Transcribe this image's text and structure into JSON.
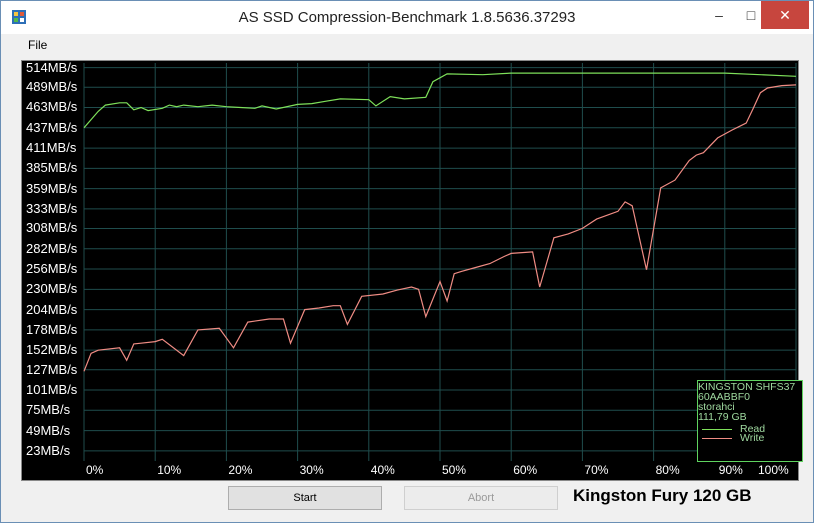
{
  "window": {
    "title": "AS SSD Compression-Benchmark 1.8.5636.37293",
    "min_glyph": "–",
    "max_glyph": "□",
    "close_glyph": "✕"
  },
  "menu": {
    "file_label": "File"
  },
  "buttons": {
    "start_label": "Start",
    "abort_label": "Abort"
  },
  "caption": "Kingston Fury 120 GB",
  "legend": {
    "lines": [
      "KINGSTON SHFS37",
      "60AABBF0",
      "storahci",
      "111,79 GB"
    ],
    "read_label": "Read",
    "write_label": "Write"
  },
  "colors": {
    "read": "#7ee05a",
    "write": "#f08c84",
    "grid": "#1f4d4d",
    "background": "#000000"
  },
  "chart_data": {
    "type": "line",
    "y_tick_labels": [
      "514MB/s",
      "489MB/s",
      "463MB/s",
      "437MB/s",
      "411MB/s",
      "385MB/s",
      "359MB/s",
      "333MB/s",
      "308MB/s",
      "282MB/s",
      "256MB/s",
      "230MB/s",
      "204MB/s",
      "178MB/s",
      "152MB/s",
      "127MB/s",
      "101MB/s",
      "75MB/s",
      "49MB/s",
      "23MB/s"
    ],
    "y_tick_values": [
      514,
      489,
      463,
      437,
      411,
      385,
      359,
      333,
      308,
      282,
      256,
      230,
      204,
      178,
      152,
      127,
      101,
      75,
      49,
      23
    ],
    "x_tick_labels": [
      "0%",
      "10%",
      "20%",
      "30%",
      "40%",
      "50%",
      "60%",
      "70%",
      "80%",
      "90%",
      "100%"
    ],
    "x_tick_values": [
      0,
      10,
      20,
      30,
      40,
      50,
      60,
      70,
      80,
      90,
      100
    ],
    "xlim": [
      0,
      100
    ],
    "ylim": [
      0,
      530
    ],
    "grid": true,
    "legend_position": "bottom-right",
    "series": [
      {
        "name": "Read",
        "points": [
          [
            0,
            437
          ],
          [
            2,
            458
          ],
          [
            3,
            466
          ],
          [
            5,
            469
          ],
          [
            6,
            469
          ],
          [
            7,
            460
          ],
          [
            8,
            463
          ],
          [
            9,
            459
          ],
          [
            11,
            462
          ],
          [
            12,
            466
          ],
          [
            13,
            464
          ],
          [
            14,
            466
          ],
          [
            16,
            464
          ],
          [
            18,
            466
          ],
          [
            20,
            464
          ],
          [
            22,
            463
          ],
          [
            24,
            462
          ],
          [
            25,
            465
          ],
          [
            27,
            461
          ],
          [
            30,
            467
          ],
          [
            32,
            468
          ],
          [
            34,
            471
          ],
          [
            36,
            474
          ],
          [
            40,
            473
          ],
          [
            41,
            465
          ],
          [
            43,
            477
          ],
          [
            45,
            474
          ],
          [
            48,
            476
          ],
          [
            49,
            496
          ],
          [
            51,
            506
          ],
          [
            56,
            505
          ],
          [
            60,
            507
          ],
          [
            70,
            507
          ],
          [
            80,
            507
          ],
          [
            90,
            507
          ],
          [
            100,
            503
          ]
        ]
      },
      {
        "name": "Write",
        "points": [
          [
            0,
            125
          ],
          [
            1,
            148
          ],
          [
            2,
            152
          ],
          [
            5,
            155
          ],
          [
            6,
            139
          ],
          [
            7,
            160
          ],
          [
            8,
            161
          ],
          [
            10,
            163
          ],
          [
            11,
            166
          ],
          [
            14,
            145
          ],
          [
            16,
            178
          ],
          [
            19,
            180
          ],
          [
            21,
            155
          ],
          [
            23,
            188
          ],
          [
            26,
            192
          ],
          [
            28,
            192
          ],
          [
            29,
            161
          ],
          [
            31,
            204
          ],
          [
            33,
            206
          ],
          [
            35,
            209
          ],
          [
            36,
            209
          ],
          [
            37,
            185
          ],
          [
            39,
            221
          ],
          [
            42,
            224
          ],
          [
            44,
            229
          ],
          [
            46,
            233
          ],
          [
            47,
            230
          ],
          [
            48,
            195
          ],
          [
            50,
            240
          ],
          [
            51,
            215
          ],
          [
            52,
            250
          ],
          [
            53,
            253
          ],
          [
            55,
            258
          ],
          [
            57,
            263
          ],
          [
            59,
            272
          ],
          [
            60,
            276
          ],
          [
            63,
            278
          ],
          [
            64,
            233
          ],
          [
            66,
            296
          ],
          [
            68,
            301
          ],
          [
            70,
            308
          ],
          [
            72,
            320
          ],
          [
            75,
            330
          ],
          [
            76,
            342
          ],
          [
            77,
            337
          ],
          [
            79,
            255
          ],
          [
            81,
            360
          ],
          [
            83,
            370
          ],
          [
            85,
            395
          ],
          [
            86,
            402
          ],
          [
            87,
            405
          ],
          [
            89,
            424
          ],
          [
            91,
            434
          ],
          [
            93,
            443
          ],
          [
            94,
            462
          ],
          [
            95,
            482
          ],
          [
            96,
            488
          ],
          [
            98,
            491
          ],
          [
            100,
            492
          ]
        ]
      }
    ]
  }
}
